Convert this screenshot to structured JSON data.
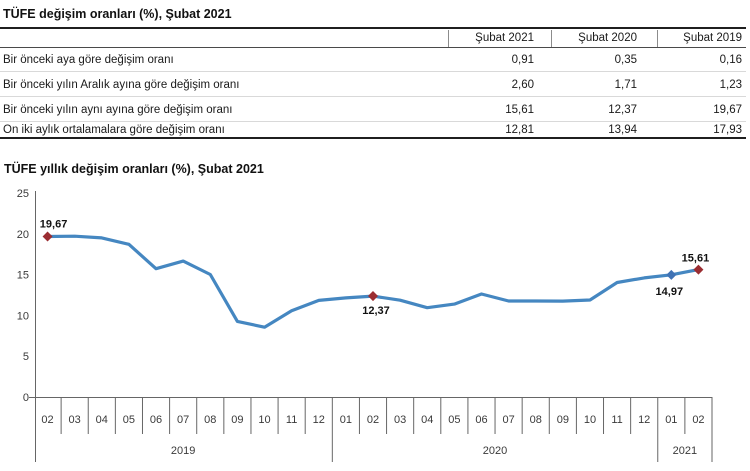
{
  "table": {
    "title": "TÜFE değişim oranları (%), Şubat 2021",
    "columns": [
      "Şubat 2021",
      "Şubat 2020",
      "Şubat 2019"
    ],
    "rows": [
      {
        "label": "Bir önceki aya göre değişim oranı",
        "values": [
          "0,91",
          "0,35",
          "0,16"
        ]
      },
      {
        "label": "Bir önceki yılın Aralık ayına göre değişim oranı",
        "values": [
          "2,60",
          "1,71",
          "1,23"
        ]
      },
      {
        "label": "Bir önceki yılın aynı ayına göre değişim oranı",
        "values": [
          "15,61",
          "12,37",
          "19,67"
        ]
      },
      {
        "label": "On iki aylık ortalamalara göre değişim oranı",
        "values": [
          "12,81",
          "13,94",
          "17,93"
        ]
      }
    ]
  },
  "chart_data": {
    "type": "line",
    "title": "TÜFE yıllık değişim oranları (%), Şubat 2021",
    "xlabel": "",
    "ylabel": "",
    "ylim": [
      0,
      25
    ],
    "y_ticks": [
      0,
      5,
      10,
      15,
      20,
      25
    ],
    "grid": false,
    "legend": false,
    "line_color": "#4587c1",
    "axis_color": "#666666",
    "months": [
      "02",
      "03",
      "04",
      "05",
      "06",
      "07",
      "08",
      "09",
      "10",
      "11",
      "12",
      "01",
      "02",
      "03",
      "04",
      "05",
      "06",
      "07",
      "08",
      "09",
      "10",
      "11",
      "12",
      "01",
      "02"
    ],
    "year_groups": [
      {
        "label": "2019",
        "months": 11
      },
      {
        "label": "2020",
        "months": 12
      },
      {
        "label": "2021",
        "months": 2
      }
    ],
    "series": [
      {
        "name": "TÜFE yıllık değişim oranı (%)",
        "values": [
          19.67,
          19.71,
          19.5,
          18.71,
          15.72,
          16.65,
          15.01,
          9.26,
          8.55,
          10.56,
          11.84,
          12.15,
          12.37,
          11.86,
          10.94,
          11.39,
          12.62,
          11.76,
          11.77,
          11.75,
          11.89,
          14.03,
          14.6,
          14.97,
          15.61
        ]
      }
    ],
    "labeled_points": [
      {
        "index": 0,
        "month": "02",
        "year": "2019",
        "value": 19.67,
        "label": "19,67",
        "marker_color": "#9b2d32",
        "label_position": "above"
      },
      {
        "index": 12,
        "month": "02",
        "year": "2020",
        "value": 12.37,
        "label": "12,37",
        "marker_color": "#9b2d32",
        "label_position": "below"
      },
      {
        "index": 23,
        "month": "01",
        "year": "2021",
        "value": 14.97,
        "label": "14,97",
        "marker_color": "#4073b5",
        "label_position": "below"
      },
      {
        "index": 24,
        "month": "02",
        "year": "2021",
        "value": 15.61,
        "label": "15,61",
        "marker_color": "#9b2d32",
        "label_position": "above"
      }
    ]
  }
}
